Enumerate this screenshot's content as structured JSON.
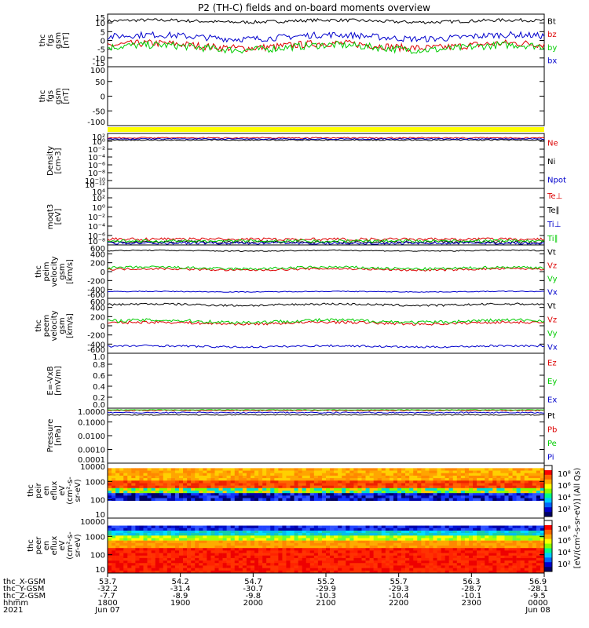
{
  "title": "P2 (TH-C) fields and on-board moments overview",
  "colors": {
    "black": "#000000",
    "red": "#dd0000",
    "green": "#00cc00",
    "blue": "#0000cc",
    "yellow": "#ffff00"
  },
  "chart_data": [
    {
      "id": "p1",
      "type": "line",
      "ylabel": [
        "thc",
        "fgs",
        "gsm",
        "[nT]"
      ],
      "yticks": [
        "15",
        "10",
        "5",
        "0",
        "-5",
        "-10",
        "-15"
      ],
      "ylim": [
        -15,
        15
      ],
      "series": [
        {
          "name": "Bt",
          "color": "#000000",
          "base": 11,
          "amp": 1.5
        },
        {
          "name": "bz",
          "color": "#dd0000",
          "base": -3,
          "amp": 3.5
        },
        {
          "name": "by",
          "color": "#00cc00",
          "base": -4,
          "amp": 3.5
        },
        {
          "name": "bx",
          "color": "#0000cc",
          "base": 2,
          "amp": 3
        }
      ]
    },
    {
      "id": "p2",
      "type": "line",
      "ylabel": [
        "thc",
        "fgs",
        "gsm",
        "[nT]"
      ],
      "yticks": [
        "100",
        "50",
        "0",
        "-50",
        "-100"
      ],
      "ylim": [
        -130,
        100
      ],
      "series": []
    },
    {
      "id": "p3",
      "type": "bar",
      "bar_color": "#ffff00"
    },
    {
      "id": "p4",
      "type": "line",
      "yscale": "log",
      "ylabel": [
        "Density",
        "[cm-3]"
      ],
      "yticks": [
        "10²",
        "10⁰",
        "10⁻²",
        "10⁻⁴",
        "10⁻⁶",
        "10⁻⁸",
        "10⁻¹⁰",
        "10⁻¹²"
      ],
      "series": [
        {
          "name": "Ne",
          "color": "#dd0000",
          "base": 0.08,
          "amp": 0.02
        },
        {
          "name": "Ni",
          "color": "#000000",
          "base": 0.12,
          "amp": 0.02
        },
        {
          "name": "Npot",
          "color": "#0000cc",
          "base": 0.1,
          "amp": 0.02
        }
      ]
    },
    {
      "id": "p5",
      "type": "line",
      "yscale": "log",
      "ylabel": [
        "moqt3",
        "[eV]"
      ],
      "yticks": [
        "10⁴",
        "10²",
        "10⁰",
        "10⁻²",
        "10⁻⁴",
        "10⁻⁶",
        "10⁻⁸"
      ],
      "series": [
        {
          "name": "Te⊥",
          "color": "#dd0000",
          "base": 0.9,
          "amp": 0.05
        },
        {
          "name": "Te∥",
          "color": "#000000",
          "base": 0.95,
          "amp": 0.05
        },
        {
          "name": "Ti⊥",
          "color": "#0000cc",
          "base": 0.97,
          "amp": 0.05
        },
        {
          "name": "Ti∥",
          "color": "#00cc00",
          "base": 0.93,
          "amp": 0.05
        }
      ]
    },
    {
      "id": "p6",
      "type": "line",
      "ylabel": [
        "thc",
        "peim",
        "velocity",
        "gsm",
        "[km/s]"
      ],
      "yticks": [
        "600",
        "400",
        "200",
        "0",
        "-200",
        "-400",
        "-600"
      ],
      "ylim": [
        -600,
        600
      ],
      "series": [
        {
          "name": "Vt",
          "color": "#000000",
          "base": 470,
          "amp": 20
        },
        {
          "name": "Vz",
          "color": "#dd0000",
          "base": 50,
          "amp": 40
        },
        {
          "name": "Vy",
          "color": "#00cc00",
          "base": 80,
          "amp": 50
        },
        {
          "name": "Vx",
          "color": "#0000cc",
          "base": -450,
          "amp": 15
        }
      ]
    },
    {
      "id": "p7",
      "type": "line",
      "ylabel": [
        "thc",
        "peem",
        "velocity",
        "gsm",
        "[km/s]"
      ],
      "yticks": [
        "600",
        "400",
        "200",
        "0",
        "-200",
        "-400",
        "-600"
      ],
      "ylim": [
        -600,
        600
      ],
      "series": [
        {
          "name": "Vt",
          "color": "#000000",
          "base": 460,
          "amp": 40
        },
        {
          "name": "Vz",
          "color": "#dd0000",
          "base": 60,
          "amp": 50
        },
        {
          "name": "Vy",
          "color": "#00cc00",
          "base": 100,
          "amp": 60
        },
        {
          "name": "Vx",
          "color": "#0000cc",
          "base": -450,
          "amp": 35
        }
      ]
    },
    {
      "id": "p8",
      "type": "line",
      "ylabel": [
        "E=-VxB",
        "[mV/m]"
      ],
      "yticks": [
        "1.0",
        "0.8",
        "0.6",
        "0.4",
        "0.2",
        "0.0"
      ],
      "ylim": [
        0,
        1
      ],
      "series": [
        {
          "name": "Ez",
          "color": "#dd0000"
        },
        {
          "name": "Ey",
          "color": "#00cc00"
        },
        {
          "name": "Ex",
          "color": "#0000cc"
        }
      ]
    },
    {
      "id": "p9",
      "type": "line",
      "yscale": "log",
      "ylabel": [
        "Pressure",
        "[nPa]"
      ],
      "yticks": [
        "1.0000",
        "0.1000",
        "0.0100",
        "0.0010",
        "0.0001"
      ],
      "ylim": [
        0.0001,
        1
      ],
      "series": [
        {
          "name": "Pt",
          "color": "#000000",
          "base": 0.12,
          "amp": 0.02
        },
        {
          "name": "Pb",
          "color": "#dd0000",
          "base": 0.04,
          "amp": 0.02
        },
        {
          "name": "Pe",
          "color": "#00cc00",
          "base": 0.03,
          "amp": 0.01
        },
        {
          "name": "Pi",
          "color": "#0000cc",
          "base": 0.08,
          "amp": 0.02
        }
      ]
    },
    {
      "id": "p10",
      "type": "heatmap",
      "ylabel": [
        "thc",
        "peir",
        "en",
        "eflux",
        "eV",
        "(cm²-s-",
        "sr-eV)"
      ],
      "yticks": [
        "10000",
        "1000",
        "100",
        "10"
      ],
      "ylim": [
        5,
        20000
      ]
    },
    {
      "id": "p11",
      "type": "heatmap",
      "ylabel": [
        "thc",
        "peer",
        "en",
        "eflux",
        "eV",
        "(cm²-s-",
        "sr-eV)"
      ],
      "yticks": [
        "10000",
        "1000",
        "100",
        "10"
      ],
      "ylim": [
        5,
        20000
      ]
    }
  ],
  "colorbar": {
    "label": "[eV/(cm²-s-sr-eV)] (All Qs)",
    "ticks_top": [
      "10⁸",
      "10⁶",
      "10⁴",
      "10²"
    ],
    "ticks_bottom": [
      "10⁸",
      "10⁶",
      "10⁴",
      "10²"
    ]
  },
  "footer": {
    "row_labels": [
      "thc_X-GSM",
      "thc_Y-GSM",
      "thc_Z-GSM",
      "hhmm",
      "2021"
    ],
    "columns": [
      {
        "values": [
          "53.7",
          "-32.2",
          "-7.7",
          "1800",
          "Jun 07"
        ]
      },
      {
        "values": [
          "54.2",
          "-31.4",
          "-8.9",
          "1900",
          ""
        ]
      },
      {
        "values": [
          "54.7",
          "-30.7",
          "-9.8",
          "2000",
          ""
        ]
      },
      {
        "values": [
          "55.2",
          "-29.9",
          "-10.3",
          "2100",
          ""
        ]
      },
      {
        "values": [
          "55.7",
          "-29.3",
          "-10.4",
          "2200",
          ""
        ]
      },
      {
        "values": [
          "56.3",
          "-28.7",
          "-10.1",
          "2300",
          ""
        ]
      },
      {
        "values": [
          "56.9",
          "-28.1",
          "-9.5",
          "0000",
          "Jun 08"
        ]
      }
    ]
  }
}
